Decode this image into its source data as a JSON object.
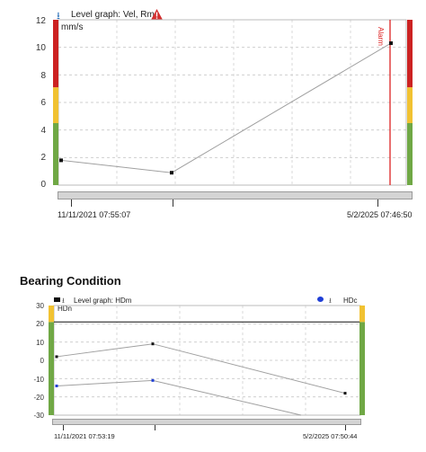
{
  "chart_data": [
    {
      "type": "line",
      "header": "Level graph: Vel, Rms",
      "unit": "mm/s",
      "ylim": [
        0,
        12
      ],
      "yticks": [
        "12",
        "10",
        "8",
        "6",
        "4",
        "2",
        "0"
      ],
      "x_start_label": "11/11/2021 07:55:07",
      "x_end_label": "5/2/2025 07:46:50",
      "series": [
        {
          "values": [
            1.8,
            0.9,
            10.3
          ],
          "color": "#a0a0a0"
        }
      ],
      "alarm_label": "Alarm",
      "alarm_color": "#dd2222",
      "bands": [
        {
          "from": 0,
          "to": 4.5,
          "color": "#70a845"
        },
        {
          "from": 4.5,
          "to": 7.1,
          "color": "#f1c232"
        },
        {
          "from": 7.1,
          "to": 12,
          "color": "#cc2222"
        }
      ],
      "grid": true
    },
    {
      "type": "line",
      "title": "Bearing Condition",
      "header": "Level graph: HDm",
      "header_right": "HDc",
      "series_label": "HDn",
      "ylim": [
        -30,
        30
      ],
      "yticks": [
        "30",
        "20",
        "10",
        "0",
        "-10",
        "-20",
        "-30"
      ],
      "x_start_label": "11/11/2021 07:53:19",
      "x_end_label": "5/2/2025 07:50:44",
      "series": [
        {
          "values": [
            2,
            9,
            -18
          ],
          "color": "#a0a0a0"
        },
        {
          "values": [
            -14,
            -11,
            -30
          ],
          "color": "#a0a0a0"
        }
      ],
      "threshold": 21,
      "bands": [
        {
          "from": -30,
          "to": 21,
          "color": "#70a845"
        },
        {
          "from": 21,
          "to": 30,
          "color": "#f1c232"
        }
      ],
      "grid": true
    }
  ],
  "icons": {
    "graph_icon": "graph-icon",
    "warning_icon": "warning-icon",
    "legend_dot_color": "#1f3fd6"
  }
}
